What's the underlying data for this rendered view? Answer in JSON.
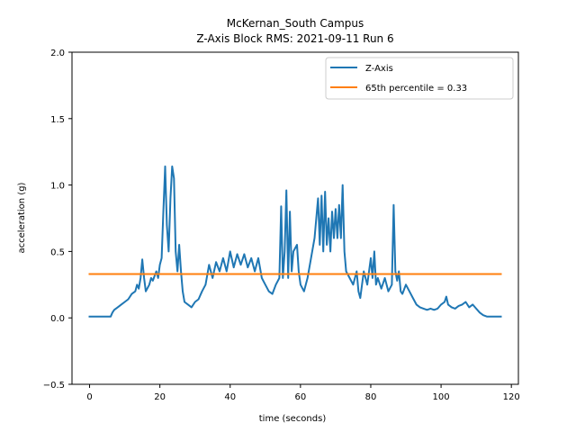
{
  "chart_data": {
    "type": "line",
    "title_line1": "McKernan_South Campus",
    "title_line2": "Z-Axis Block RMS: 2021-09-11 Run 6",
    "xlabel": "time (seconds)",
    "ylabel": "acceleration (g)",
    "xlim": [
      -5,
      122
    ],
    "ylim": [
      -0.5,
      2.0
    ],
    "xticks": [
      0,
      20,
      40,
      60,
      80,
      100,
      120
    ],
    "xtick_labels": [
      "0",
      "20",
      "40",
      "60",
      "80",
      "100",
      "120"
    ],
    "yticks": [
      -0.5,
      0.0,
      0.5,
      1.0,
      1.5,
      2.0
    ],
    "ytick_labels": [
      "−0.5",
      "0.0",
      "0.5",
      "1.0",
      "1.5",
      "2.0"
    ],
    "grid": false,
    "legend_position": "top-right",
    "series": [
      {
        "name": "Z-Axis",
        "color": "#1f77b4",
        "points": [
          [
            0,
            0.01
          ],
          [
            2,
            0.01
          ],
          [
            4,
            0.01
          ],
          [
            6,
            0.01
          ],
          [
            6.5,
            0.04
          ],
          [
            7,
            0.06
          ],
          [
            8,
            0.08
          ],
          [
            9,
            0.1
          ],
          [
            10,
            0.12
          ],
          [
            11,
            0.14
          ],
          [
            12,
            0.18
          ],
          [
            13,
            0.2
          ],
          [
            13.5,
            0.25
          ],
          [
            14,
            0.22
          ],
          [
            14.5,
            0.3
          ],
          [
            15,
            0.44
          ],
          [
            15.5,
            0.3
          ],
          [
            16,
            0.2
          ],
          [
            17,
            0.25
          ],
          [
            17.5,
            0.3
          ],
          [
            18,
            0.28
          ],
          [
            19,
            0.35
          ],
          [
            19.5,
            0.3
          ],
          [
            20,
            0.4
          ],
          [
            20.5,
            0.45
          ],
          [
            21,
            0.8
          ],
          [
            21.5,
            1.14
          ],
          [
            22,
            0.7
          ],
          [
            22.5,
            0.5
          ],
          [
            23,
            0.9
          ],
          [
            23.5,
            1.14
          ],
          [
            24,
            1.05
          ],
          [
            24.5,
            0.5
          ],
          [
            25,
            0.35
          ],
          [
            25.5,
            0.55
          ],
          [
            26,
            0.35
          ],
          [
            26.5,
            0.2
          ],
          [
            27,
            0.12
          ],
          [
            28,
            0.1
          ],
          [
            29,
            0.08
          ],
          [
            30,
            0.12
          ],
          [
            31,
            0.14
          ],
          [
            32,
            0.2
          ],
          [
            33,
            0.25
          ],
          [
            34,
            0.4
          ],
          [
            35,
            0.3
          ],
          [
            36,
            0.42
          ],
          [
            37,
            0.35
          ],
          [
            38,
            0.45
          ],
          [
            39,
            0.35
          ],
          [
            40,
            0.5
          ],
          [
            41,
            0.38
          ],
          [
            42,
            0.48
          ],
          [
            43,
            0.4
          ],
          [
            44,
            0.48
          ],
          [
            45,
            0.38
          ],
          [
            46,
            0.45
          ],
          [
            47,
            0.35
          ],
          [
            48,
            0.45
          ],
          [
            49,
            0.3
          ],
          [
            50,
            0.25
          ],
          [
            51,
            0.2
          ],
          [
            52,
            0.18
          ],
          [
            53,
            0.25
          ],
          [
            54,
            0.3
          ],
          [
            54.5,
            0.84
          ],
          [
            55,
            0.3
          ],
          [
            55.5,
            0.5
          ],
          [
            56,
            0.96
          ],
          [
            56.5,
            0.3
          ],
          [
            57,
            0.8
          ],
          [
            57.5,
            0.35
          ],
          [
            58,
            0.5
          ],
          [
            59,
            0.55
          ],
          [
            59.5,
            0.35
          ],
          [
            60,
            0.25
          ],
          [
            61,
            0.2
          ],
          [
            62,
            0.3
          ],
          [
            63,
            0.45
          ],
          [
            64,
            0.6
          ],
          [
            65,
            0.9
          ],
          [
            65.5,
            0.55
          ],
          [
            66,
            0.92
          ],
          [
            66.5,
            0.5
          ],
          [
            67,
            0.95
          ],
          [
            67.5,
            0.55
          ],
          [
            68,
            0.75
          ],
          [
            68.5,
            0.5
          ],
          [
            69,
            0.8
          ],
          [
            69.5,
            0.6
          ],
          [
            70,
            0.82
          ],
          [
            70.5,
            0.6
          ],
          [
            71,
            0.85
          ],
          [
            71.5,
            0.6
          ],
          [
            72,
            1.0
          ],
          [
            72.5,
            0.5
          ],
          [
            73,
            0.35
          ],
          [
            74,
            0.3
          ],
          [
            75,
            0.25
          ],
          [
            76,
            0.35
          ],
          [
            76.5,
            0.2
          ],
          [
            77,
            0.15
          ],
          [
            78,
            0.35
          ],
          [
            79,
            0.25
          ],
          [
            80,
            0.45
          ],
          [
            80.5,
            0.3
          ],
          [
            81,
            0.5
          ],
          [
            81.5,
            0.25
          ],
          [
            82,
            0.3
          ],
          [
            83,
            0.22
          ],
          [
            84,
            0.3
          ],
          [
            85,
            0.2
          ],
          [
            86,
            0.25
          ],
          [
            86.5,
            0.85
          ],
          [
            87,
            0.35
          ],
          [
            87.5,
            0.28
          ],
          [
            88,
            0.35
          ],
          [
            88.5,
            0.2
          ],
          [
            89,
            0.18
          ],
          [
            90,
            0.25
          ],
          [
            91,
            0.2
          ],
          [
            92,
            0.15
          ],
          [
            93,
            0.1
          ],
          [
            94,
            0.08
          ],
          [
            95,
            0.07
          ],
          [
            96,
            0.06
          ],
          [
            97,
            0.07
          ],
          [
            98,
            0.06
          ],
          [
            99,
            0.07
          ],
          [
            100,
            0.1
          ],
          [
            101,
            0.12
          ],
          [
            101.5,
            0.16
          ],
          [
            102,
            0.1
          ],
          [
            103,
            0.08
          ],
          [
            104,
            0.07
          ],
          [
            105,
            0.09
          ],
          [
            106,
            0.1
          ],
          [
            107,
            0.12
          ],
          [
            108,
            0.08
          ],
          [
            109,
            0.1
          ],
          [
            110,
            0.07
          ],
          [
            111,
            0.04
          ],
          [
            112,
            0.02
          ],
          [
            113,
            0.01
          ],
          [
            115,
            0.01
          ],
          [
            117,
            0.01
          ]
        ]
      },
      {
        "name": "65th percentile = 0.33",
        "color": "#ff7f0e",
        "points": [
          [
            0,
            0.33
          ],
          [
            117,
            0.33
          ]
        ]
      }
    ]
  }
}
